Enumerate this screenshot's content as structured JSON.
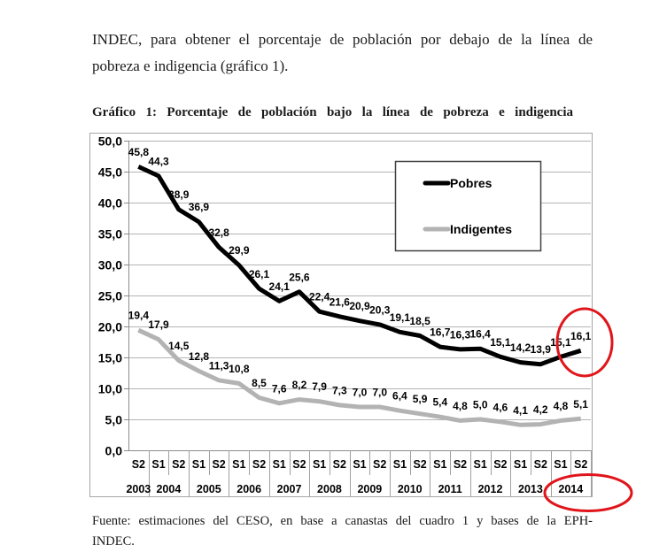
{
  "document": {
    "body_text_lines": [
      "INDEC, para obtener el porcentaje de población por debajo de la línea de",
      "pobreza e indigencia (gráfico 1)."
    ],
    "figure_title": "Gráfico 1: Porcentaje de población bajo la línea de pobreza e indigencia",
    "source_lines": [
      "Fuente: estimaciones del CESO, en base a canastas del cuadro 1 y bases de la EPH-",
      "INDEC."
    ]
  },
  "annotations": {
    "highlight_circles": [
      {
        "surrounds": "16,1",
        "color": "#e0151b"
      },
      {
        "surrounds": "2014",
        "color": "#e0151b"
      }
    ]
  },
  "chart_data": {
    "type": "line",
    "title": "Gráfico 1: Porcentaje de población bajo la línea de pobreza e indigencia",
    "xlabel": "",
    "ylabel": "",
    "ylim": [
      0,
      50
    ],
    "yticks": [
      0,
      5,
      10,
      15,
      20,
      25,
      30,
      35,
      40,
      45,
      50
    ],
    "ytick_labels": [
      "0,0",
      "5,0",
      "10,0",
      "15,0",
      "20,0",
      "25,0",
      "30,0",
      "35,0",
      "40,0",
      "45,0",
      "50,0"
    ],
    "grid": true,
    "legend_position": "upper right, inside plot area",
    "categories": [
      "2003 S2",
      "2004 S1",
      "2004 S2",
      "2005 S1",
      "2005 S2",
      "2006 S1",
      "2006 S2",
      "2007 S1",
      "2007 S2",
      "2008 S1",
      "2008 S2",
      "2009 S1",
      "2009 S2",
      "2010 S1",
      "2010 S2",
      "2011 S1",
      "2011 S2",
      "2012 S1",
      "2012 S2",
      "2013 S1",
      "2013 S2",
      "2014 S1",
      "2014 S2"
    ],
    "x_semesters": [
      "S2",
      "S1",
      "S2",
      "S1",
      "S2",
      "S1",
      "S2",
      "S1",
      "S2",
      "S1",
      "S2",
      "S1",
      "S2",
      "S1",
      "S2",
      "S1",
      "S2",
      "S1",
      "S2",
      "S1",
      "S2",
      "S1",
      "S2"
    ],
    "x_years": [
      {
        "label": "2003",
        "span": 1
      },
      {
        "label": "2004",
        "span": 2
      },
      {
        "label": "2005",
        "span": 2
      },
      {
        "label": "2006",
        "span": 2
      },
      {
        "label": "2007",
        "span": 2
      },
      {
        "label": "2008",
        "span": 2
      },
      {
        "label": "2009",
        "span": 2
      },
      {
        "label": "2010",
        "span": 2
      },
      {
        "label": "2011",
        "span": 2
      },
      {
        "label": "2012",
        "span": 2
      },
      {
        "label": "2013",
        "span": 2
      },
      {
        "label": "2014",
        "span": 2
      }
    ],
    "series": [
      {
        "name": "Pobres",
        "color": "#000000",
        "values": [
          45.8,
          44.3,
          38.9,
          36.9,
          32.8,
          29.9,
          26.1,
          24.1,
          25.6,
          22.4,
          21.6,
          20.9,
          20.3,
          19.1,
          18.5,
          16.7,
          16.3,
          16.4,
          15.1,
          14.2,
          13.9,
          15.1,
          16.1
        ],
        "data_labels": [
          "45,8",
          "44,3",
          "38,9",
          "36,9",
          "32,8",
          "29,9",
          "26,1",
          "24,1",
          "25,6",
          "22,4",
          "21,6",
          "20,9",
          "20,3",
          "19,1",
          "18,5",
          "16,7",
          "16,3",
          "16,4",
          "15,1",
          "14,2",
          "13,9",
          "15,1",
          "16,1"
        ]
      },
      {
        "name": "Indigentes",
        "color": "#b3b3b3",
        "values": [
          19.4,
          17.9,
          14.5,
          12.8,
          11.3,
          10.8,
          8.5,
          7.6,
          8.2,
          7.9,
          7.3,
          7.0,
          7.0,
          6.4,
          5.9,
          5.4,
          4.8,
          5.0,
          4.6,
          4.1,
          4.2,
          4.8,
          5.1
        ],
        "data_labels": [
          "19,4",
          "17,9",
          "14,5",
          "12,8",
          "11,3",
          "10,8",
          "8,5",
          "7,6",
          "8,2",
          "7,9",
          "7,3",
          "7,0",
          "7,0",
          "6,4",
          "5,9",
          "5,4",
          "4,8",
          "5,0",
          "4,6",
          "4,1",
          "4,2",
          "4,8",
          "5,1"
        ]
      }
    ]
  }
}
